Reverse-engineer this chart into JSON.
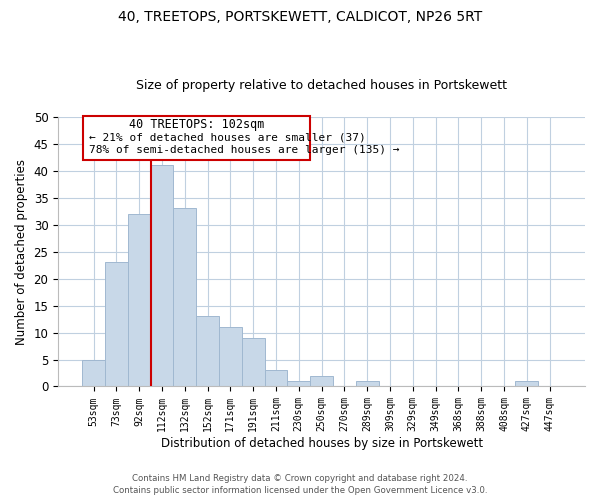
{
  "title": "40, TREETOPS, PORTSKEWETT, CALDICOT, NP26 5RT",
  "subtitle": "Size of property relative to detached houses in Portskewett",
  "xlabel": "Distribution of detached houses by size in Portskewett",
  "ylabel": "Number of detached properties",
  "bar_labels": [
    "53sqm",
    "73sqm",
    "92sqm",
    "112sqm",
    "132sqm",
    "152sqm",
    "171sqm",
    "191sqm",
    "211sqm",
    "230sqm",
    "250sqm",
    "270sqm",
    "289sqm",
    "309sqm",
    "329sqm",
    "349sqm",
    "368sqm",
    "388sqm",
    "408sqm",
    "427sqm",
    "447sqm"
  ],
  "bar_values": [
    5,
    23,
    32,
    41,
    33,
    13,
    11,
    9,
    3,
    1,
    2,
    0,
    1,
    0,
    0,
    0,
    0,
    0,
    0,
    1,
    0
  ],
  "bar_color": "#c8d8e8",
  "bar_edge_color": "#a0b8d0",
  "vline_x_index": 3,
  "vline_color": "#cc0000",
  "ylim": [
    0,
    50
  ],
  "yticks": [
    0,
    5,
    10,
    15,
    20,
    25,
    30,
    35,
    40,
    45,
    50
  ],
  "ann_title": "40 TREETOPS: 102sqm",
  "ann_line1": "← 21% of detached houses are smaller (37)",
  "ann_line2": "78% of semi-detached houses are larger (135) →",
  "footer_line1": "Contains HM Land Registry data © Crown copyright and database right 2024.",
  "footer_line2": "Contains public sector information licensed under the Open Government Licence v3.0.",
  "bg_color": "#ffffff",
  "grid_color": "#c0d0e0",
  "title_fontsize": 10,
  "subtitle_fontsize": 9
}
